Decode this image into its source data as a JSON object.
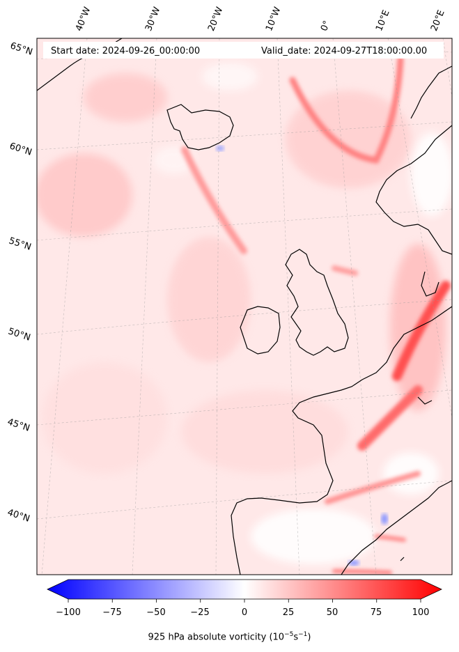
{
  "header": {
    "start_label": "Start date: 2024-09-26_00:00:00",
    "valid_label": "Valid_date: 2024-09-27T18:00:00.00"
  },
  "lat_labels": [
    "65°N",
    "60°N",
    "55°N",
    "50°N",
    "45°N",
    "40°N"
  ],
  "lon_labels": [
    "40°W",
    "30°W",
    "20°W",
    "10°W",
    "0°",
    "10°E",
    "20°E"
  ],
  "colorbar": {
    "ticks": [
      "−100",
      "−75",
      "−50",
      "−25",
      "0",
      "25",
      "50",
      "75",
      "100"
    ],
    "title": "925 hPa absolute vorticity (10",
    "title_exp1": "−5",
    "title_mid": "s",
    "title_exp2": "−1",
    "title_end": ")",
    "range": [
      -100,
      100
    ],
    "colors": {
      "negative": "#0000ff",
      "zero": "#ffffff",
      "positive": "#ff0000"
    }
  }
}
